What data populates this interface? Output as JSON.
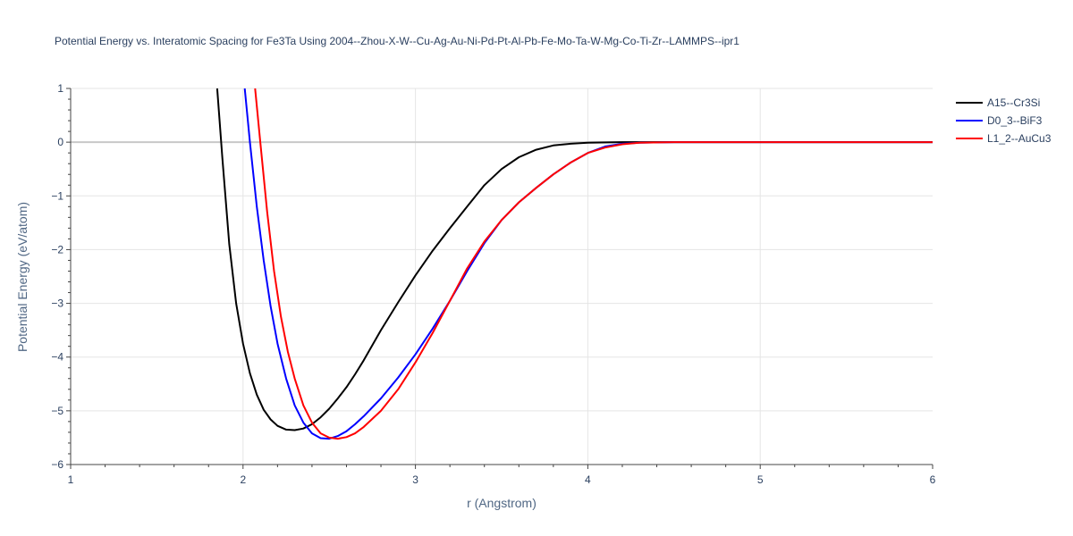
{
  "chart_data": {
    "type": "line",
    "title": "Potential Energy vs. Interatomic Spacing for Fe3Ta Using 2004--Zhou-X-W--Cu-Ag-Au-Ni-Pd-Pt-Al-Pb-Fe-Mo-Ta-W-Mg-Co-Ti-Zr--LAMMPS--ipr1",
    "xlabel": "r (Angstrom)",
    "ylabel": "Potential Energy (eV/atom)",
    "xlim": [
      1,
      6
    ],
    "ylim": [
      -6,
      1
    ],
    "xticks": [
      "1",
      "2",
      "3",
      "4",
      "5",
      "6"
    ],
    "yticks": [
      "1",
      "0",
      "−1",
      "−2",
      "−3",
      "−4",
      "−5",
      "−6"
    ],
    "grid": true,
    "legend_position": "top-right",
    "series": [
      {
        "name": "A15--Cr3Si",
        "color": "#000000",
        "x": [
          1.85,
          1.88,
          1.92,
          1.96,
          2.0,
          2.04,
          2.08,
          2.12,
          2.16,
          2.2,
          2.25,
          2.3,
          2.35,
          2.4,
          2.45,
          2.5,
          2.55,
          2.6,
          2.65,
          2.7,
          2.8,
          2.9,
          3.0,
          3.1,
          3.2,
          3.3,
          3.4,
          3.5,
          3.6,
          3.7,
          3.8,
          3.9,
          4.0,
          4.2,
          4.5,
          5.0,
          6.0
        ],
        "y": [
          1.0,
          -0.3,
          -1.9,
          -3.0,
          -3.75,
          -4.3,
          -4.7,
          -4.98,
          -5.16,
          -5.28,
          -5.35,
          -5.36,
          -5.33,
          -5.25,
          -5.12,
          -4.96,
          -4.77,
          -4.56,
          -4.32,
          -4.06,
          -3.5,
          -2.98,
          -2.48,
          -2.02,
          -1.6,
          -1.2,
          -0.8,
          -0.5,
          -0.28,
          -0.14,
          -0.06,
          -0.03,
          -0.01,
          0.0,
          0.0,
          0.0,
          0.0
        ]
      },
      {
        "name": "D0_3--BiF3",
        "color": "#0000ff",
        "x": [
          2.01,
          2.04,
          2.08,
          2.12,
          2.16,
          2.2,
          2.25,
          2.3,
          2.35,
          2.4,
          2.45,
          2.5,
          2.55,
          2.6,
          2.65,
          2.7,
          2.8,
          2.9,
          3.0,
          3.1,
          3.2,
          3.3,
          3.4,
          3.5,
          3.6,
          3.7,
          3.8,
          3.9,
          4.0,
          4.1,
          4.2,
          4.3,
          4.5,
          5.0,
          6.0
        ],
        "y": [
          1.0,
          0.0,
          -1.2,
          -2.2,
          -3.05,
          -3.75,
          -4.4,
          -4.9,
          -5.22,
          -5.42,
          -5.51,
          -5.52,
          -5.47,
          -5.38,
          -5.25,
          -5.1,
          -4.77,
          -4.38,
          -3.95,
          -3.47,
          -2.95,
          -2.4,
          -1.88,
          -1.45,
          -1.12,
          -0.85,
          -0.6,
          -0.38,
          -0.2,
          -0.08,
          -0.03,
          -0.01,
          0.0,
          0.0,
          0.0
        ]
      },
      {
        "name": "L1_2--AuCu3",
        "color": "#ff0000",
        "x": [
          2.07,
          2.1,
          2.14,
          2.18,
          2.22,
          2.26,
          2.3,
          2.35,
          2.4,
          2.45,
          2.5,
          2.55,
          2.6,
          2.65,
          2.7,
          2.8,
          2.9,
          3.0,
          3.1,
          3.2,
          3.3,
          3.4,
          3.5,
          3.6,
          3.7,
          3.8,
          3.9,
          4.0,
          4.1,
          4.2,
          4.3,
          4.5,
          5.0,
          6.0
        ],
        "y": [
          1.0,
          0.0,
          -1.3,
          -2.4,
          -3.25,
          -3.9,
          -4.4,
          -4.9,
          -5.22,
          -5.42,
          -5.5,
          -5.52,
          -5.49,
          -5.42,
          -5.3,
          -5.0,
          -4.6,
          -4.1,
          -3.55,
          -2.95,
          -2.35,
          -1.85,
          -1.45,
          -1.12,
          -0.85,
          -0.6,
          -0.38,
          -0.2,
          -0.1,
          -0.04,
          -0.01,
          0.0,
          0.0,
          0.0
        ]
      }
    ]
  }
}
